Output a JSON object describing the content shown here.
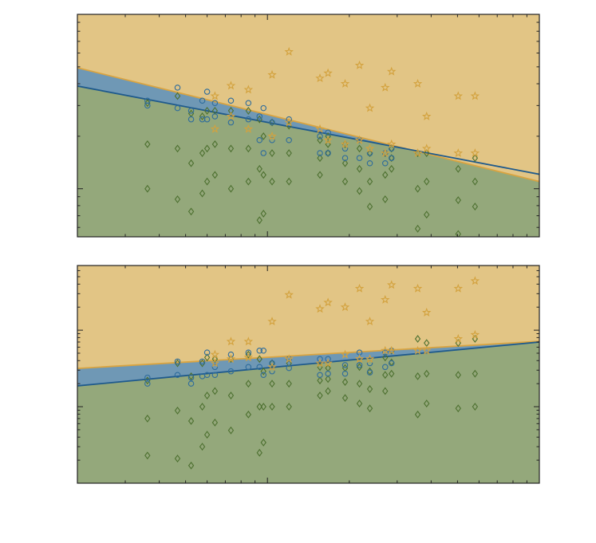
{
  "chart_data": [
    {
      "type": "scatter",
      "log_x": true,
      "log_y": true,
      "xlim": [
        0.2,
        10
      ],
      "ylim": [
        0.53,
        10
      ],
      "xticks": [
        1,
        10
      ],
      "yticks": [
        1,
        10
      ],
      "xminor": [
        0.3,
        0.4,
        0.5,
        0.6,
        0.7,
        0.8,
        0.9,
        2,
        3,
        4,
        5,
        6,
        7,
        8,
        9
      ],
      "yminor": [
        0.6,
        0.7,
        0.8,
        0.9,
        2,
        3,
        4,
        5,
        6,
        7,
        8,
        9
      ],
      "regions": [
        {
          "color": "#e2c585",
          "line_color": "#d9a441",
          "x": [
            0.2,
            10
          ],
          "y": [
            4.94,
            1.1
          ]
        },
        {
          "color": "#6f98b5",
          "line_color": "#1f5a8c",
          "x": [
            0.2,
            10
          ],
          "y": [
            3.88,
            1.21
          ]
        }
      ],
      "below_color": "#94a87b",
      "series": [
        {
          "marker": "diamond",
          "color": "#4d7030",
          "x": [
            0.362,
            0.362,
            0.362,
            0.467,
            0.467,
            0.467,
            0.524,
            0.524,
            0.524,
            0.576,
            0.576,
            0.576,
            0.6,
            0.6,
            0.6,
            0.641,
            0.641,
            0.641,
            0.734,
            0.734,
            0.734,
            0.851,
            0.851,
            0.851,
            0.935,
            0.935,
            0.935,
            0.967,
            0.967,
            0.967,
            1.04,
            1.04,
            1.04,
            1.2,
            1.2,
            1.2,
            1.56,
            1.56,
            1.56,
            1.67,
            1.67,
            1.67,
            1.93,
            1.93,
            1.93,
            2.18,
            2.18,
            2.18,
            2.38,
            2.38,
            2.38,
            2.71,
            2.71,
            2.71,
            2.86,
            2.86,
            2.86,
            3.57,
            3.57,
            3.57,
            3.85,
            3.85,
            3.85,
            5.03,
            5.03,
            5.03,
            5.8,
            5.8,
            5.8
          ],
          "y": [
            3.1,
            1.8,
            1.0,
            3.4,
            1.7,
            0.87,
            2.7,
            1.4,
            0.74,
            2.6,
            1.6,
            0.94,
            2.8,
            1.7,
            1.1,
            2.8,
            1.8,
            1.2,
            2.8,
            1.7,
            1.0,
            2.8,
            1.7,
            1.1,
            2.5,
            1.3,
            0.66,
            2.0,
            1.2,
            0.72,
            2.4,
            1.6,
            1.1,
            2.3,
            1.6,
            1.1,
            1.9,
            1.5,
            1.2,
            2.0,
            1.8,
            1.6,
            1.8,
            1.4,
            1.1,
            1.7,
            1.3,
            0.97,
            1.6,
            1.1,
            0.79,
            1.6,
            1.2,
            0.87,
            1.7,
            1.5,
            1.3,
            1.6,
            1.0,
            0.59,
            1.6,
            1.1,
            0.71,
            1.3,
            0.86,
            0.55,
            1.5,
            1.1,
            0.79
          ]
        },
        {
          "marker": "circle",
          "color": "#2e6c9c",
          "x": [
            0.362,
            0.362,
            0.467,
            0.467,
            0.524,
            0.524,
            0.576,
            0.576,
            0.6,
            0.6,
            0.641,
            0.641,
            0.734,
            0.734,
            0.851,
            0.851,
            0.935,
            0.935,
            0.967,
            0.967,
            1.04,
            1.04,
            1.2,
            1.2,
            1.56,
            1.56,
            1.67,
            1.67,
            1.93,
            1.93,
            2.18,
            2.18,
            2.38,
            2.38,
            2.71,
            2.71,
            2.86,
            2.86
          ],
          "y": [
            3.2,
            3.0,
            3.8,
            2.9,
            2.8,
            2.5,
            3.2,
            2.5,
            3.6,
            2.5,
            3.1,
            2.6,
            3.2,
            2.4,
            3.1,
            2.5,
            2.6,
            1.9,
            2.9,
            1.6,
            2.4,
            1.9,
            2.5,
            1.9,
            2.0,
            1.6,
            2.1,
            1.6,
            1.7,
            1.5,
            1.9,
            1.5,
            1.6,
            1.4,
            1.6,
            1.4,
            1.7,
            1.5
          ]
        },
        {
          "marker": "star",
          "color": "#d3a23e",
          "x": [
            0.641,
            0.641,
            0.734,
            0.734,
            0.851,
            0.851,
            1.04,
            1.04,
            1.2,
            1.2,
            1.56,
            1.56,
            1.67,
            1.67,
            1.93,
            1.93,
            2.18,
            2.18,
            2.38,
            2.38,
            2.71,
            2.71,
            2.86,
            2.86,
            3.57,
            3.57,
            3.85,
            3.85,
            5.03,
            5.03,
            5.8,
            5.8
          ],
          "y": [
            3.4,
            2.2,
            3.9,
            2.6,
            3.7,
            2.2,
            4.5,
            2.0,
            6.1,
            2.4,
            4.3,
            2.2,
            4.6,
            1.9,
            4.0,
            1.8,
            5.1,
            1.9,
            2.9,
            1.7,
            3.8,
            1.6,
            4.7,
            1.8,
            4.0,
            1.6,
            2.6,
            1.7,
            3.4,
            1.6,
            3.4,
            1.6
          ]
        }
      ]
    },
    {
      "type": "scatter",
      "log_x": true,
      "log_y": true,
      "xlim": [
        0.2,
        10
      ],
      "ylim": [
        0.1,
        70
      ],
      "xticks": [
        1,
        10
      ],
      "yticks": [
        0.1,
        1,
        10
      ],
      "xminor": [
        0.3,
        0.4,
        0.5,
        0.6,
        0.7,
        0.8,
        0.9,
        2,
        3,
        4,
        5,
        6,
        7,
        8,
        9
      ],
      "yminor": [
        0.2,
        0.3,
        0.4,
        0.5,
        0.6,
        0.7,
        0.8,
        0.9,
        2,
        3,
        4,
        5,
        6,
        7,
        8,
        9,
        20,
        30,
        40,
        50,
        60
      ],
      "regions": [
        {
          "color": "#e2c585",
          "line_color": "#d9a441",
          "x": [
            0.2,
            10
          ],
          "y": [
            3.16,
            7.15
          ]
        },
        {
          "color": "#6f98b5",
          "line_color": "#1f5a8c",
          "x": [
            0.2,
            10
          ],
          "y": [
            1.87,
            7.0
          ]
        }
      ],
      "below_color": "#94a87b",
      "series": [
        {
          "marker": "diamond",
          "color": "#4d7030",
          "x": [
            0.362,
            0.362,
            0.362,
            0.467,
            0.467,
            0.467,
            0.524,
            0.524,
            0.524,
            0.576,
            0.576,
            0.576,
            0.6,
            0.6,
            0.6,
            0.641,
            0.641,
            0.641,
            0.734,
            0.734,
            0.734,
            0.851,
            0.851,
            0.851,
            0.935,
            0.935,
            0.935,
            0.967,
            0.967,
            0.967,
            1.04,
            1.04,
            1.04,
            1.2,
            1.2,
            1.2,
            1.56,
            1.56,
            1.56,
            1.67,
            1.67,
            1.67,
            1.93,
            1.93,
            1.93,
            2.18,
            2.18,
            2.18,
            2.38,
            2.38,
            2.38,
            2.71,
            2.71,
            2.71,
            2.86,
            2.86,
            2.86,
            3.57,
            3.57,
            3.57,
            3.85,
            3.85,
            3.85,
            5.03,
            5.03,
            5.03,
            5.8,
            5.8,
            5.8
          ],
          "y": [
            2.2,
            0.7,
            0.23,
            3.7,
            0.89,
            0.21,
            2.5,
            0.65,
            0.17,
            3.7,
            1.0,
            0.3,
            4.4,
            1.4,
            0.43,
            4.2,
            1.6,
            0.62,
            4.2,
            1.4,
            0.49,
            4.8,
            2.0,
            0.79,
            4.2,
            1.0,
            0.25,
            2.9,
            1.0,
            0.34,
            3.7,
            2.0,
            1.0,
            3.7,
            2.0,
            1.0,
            3.3,
            2.2,
            1.4,
            3.2,
            2.3,
            1.6,
            3.2,
            2.1,
            1.3,
            3.3,
            2.0,
            1.1,
            2.9,
            1.7,
            0.95,
            4.4,
            2.6,
            1.6,
            5.4,
            3.8,
            2.7,
            7.7,
            2.5,
            0.79,
            6.8,
            2.7,
            1.1,
            6.8,
            2.6,
            0.95,
            7.7,
            2.7,
            1.0
          ]
        },
        {
          "marker": "circle",
          "color": "#2e6c9c",
          "x": [
            0.362,
            0.362,
            0.467,
            0.467,
            0.524,
            0.524,
            0.576,
            0.576,
            0.6,
            0.6,
            0.641,
            0.641,
            0.734,
            0.734,
            0.851,
            0.851,
            0.935,
            0.935,
            0.967,
            0.967,
            1.04,
            1.04,
            1.2,
            1.2,
            1.56,
            1.56,
            1.67,
            1.67,
            1.93,
            1.93,
            2.18,
            2.18,
            2.38,
            2.38,
            2.71,
            2.71,
            2.86,
            2.86
          ],
          "y": [
            2.4,
            2.0,
            3.9,
            2.6,
            2.4,
            2.0,
            3.9,
            2.5,
            5.1,
            2.6,
            3.3,
            2.6,
            4.8,
            2.9,
            5.1,
            3.3,
            5.4,
            3.3,
            5.4,
            2.6,
            3.7,
            2.9,
            4.2,
            3.2,
            4.2,
            2.6,
            4.2,
            2.7,
            3.5,
            2.7,
            5.1,
            3.5,
            3.7,
            2.8,
            5.1,
            3.3,
            5.4,
            3.7
          ]
        },
        {
          "marker": "star",
          "color": "#d3a23e",
          "x": [
            0.641,
            0.641,
            0.734,
            0.734,
            0.851,
            0.851,
            1.04,
            1.04,
            1.2,
            1.2,
            1.56,
            1.56,
            1.67,
            1.67,
            1.93,
            1.93,
            2.18,
            2.18,
            2.38,
            2.38,
            2.71,
            2.71,
            2.86,
            2.86,
            3.57,
            3.57,
            3.85,
            3.85,
            5.03,
            5.03,
            5.8,
            5.8
          ],
          "y": [
            4.8,
            3.7,
            7.1,
            4.2,
            7.1,
            4.4,
            13,
            3.3,
            29,
            4.2,
            19,
            3.7,
            23,
            3.7,
            20,
            4.8,
            35,
            4.2,
            13,
            4.2,
            25,
            5.4,
            39,
            5.4,
            35,
            5.4,
            17,
            5.4,
            35,
            7.7,
            44,
            8.7
          ]
        }
      ]
    }
  ]
}
